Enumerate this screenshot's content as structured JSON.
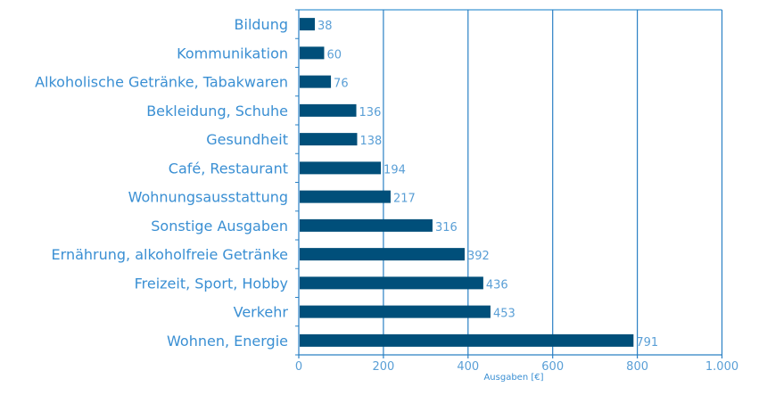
{
  "chart_data": {
    "type": "bar",
    "orientation": "horizontal",
    "title": "",
    "xlabel": "Ausgaben [€]",
    "ylabel": "",
    "xlim": [
      0,
      1000
    ],
    "xticks": [
      0,
      200,
      400,
      600,
      800,
      1000
    ],
    "xtick_labels": [
      "0",
      "200",
      "400",
      "600",
      "800",
      "1.000"
    ],
    "grid": true,
    "categories": [
      "Bildung",
      "Kommunikation",
      "Alkoholische Getränke, Tabakwaren",
      "Bekleidung, Schuhe",
      "Gesundheit",
      "Café, Restaurant",
      "Wohnungsausstattung",
      "Sonstige Ausgaben",
      "Ernährung, alkoholfreie Getränke",
      "Freizeit, Sport, Hobby",
      "Verkehr",
      "Wohnen, Energie"
    ],
    "values": [
      38,
      60,
      76,
      136,
      138,
      194,
      217,
      316,
      392,
      436,
      453,
      791
    ],
    "colors": {
      "bar": "#004f7a",
      "grid": "#2a80c4",
      "text": "#3a8fd3",
      "top_border": "#86bde3"
    }
  }
}
